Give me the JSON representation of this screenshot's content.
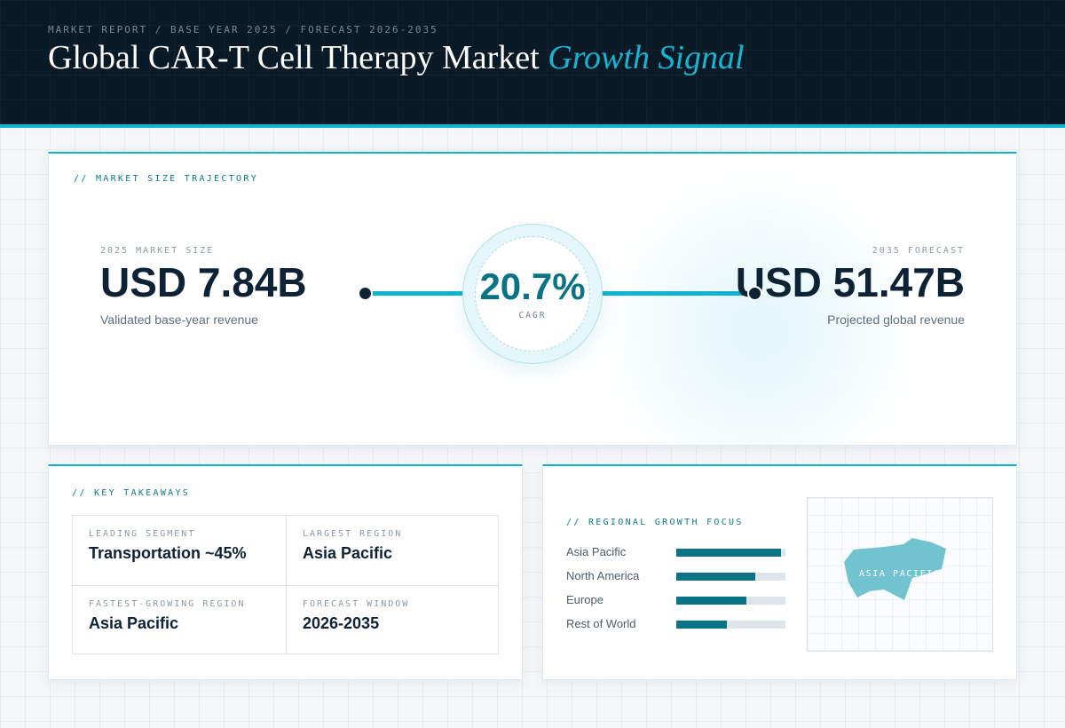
{
  "header": {
    "kicker": "MARKET REPORT / BASE YEAR 2025 / FORECAST 2026-2035",
    "title_main": "Global CAR-T Cell Therapy Market",
    "title_accent": "Growth Signal"
  },
  "trajectory": {
    "label": "// MARKET SIZE TRAJECTORY",
    "start": {
      "label": "2025 MARKET SIZE",
      "value": "USD 7.84B",
      "description": "Validated base-year revenue"
    },
    "cagr": {
      "value": "20.7%",
      "label": "CAGR"
    },
    "end": {
      "label": "2035 FORECAST",
      "value": "USD 51.47B",
      "description": "Projected global revenue"
    }
  },
  "takeaways": {
    "label": "// KEY TAKEAWAYS",
    "items": [
      {
        "label": "LEADING SEGMENT",
        "value": "Transportation ~45%"
      },
      {
        "label": "LARGEST REGION",
        "value": "Asia Pacific"
      },
      {
        "label": "FASTEST-GROWING REGION",
        "value": "Asia Pacific"
      },
      {
        "label": "FORECAST WINDOW",
        "value": "2026-2035"
      }
    ]
  },
  "regional": {
    "label": "// REGIONAL GROWTH FOCUS",
    "bars": [
      {
        "name": "Asia Pacific",
        "share": 0.96
      },
      {
        "name": "North America",
        "share": 0.72
      },
      {
        "name": "Europe",
        "share": 0.64
      },
      {
        "name": "Rest of World",
        "share": 0.46
      }
    ],
    "map_label": "ASIA PACIFIC"
  },
  "colors": {
    "accent": "#12b3cf",
    "bar_fill": "#0b7386",
    "header_bg": "#0a1926",
    "map_fill": "#71c3d0"
  }
}
